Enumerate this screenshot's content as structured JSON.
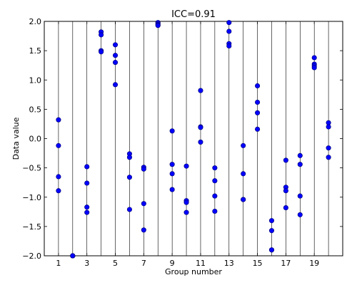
{
  "chart_data": {
    "type": "scatter",
    "title": "ICC=0.91",
    "xlabel": "Group number",
    "ylabel": "Data value",
    "xlim": [
      0,
      21
    ],
    "ylim": [
      -2.0,
      2.0
    ],
    "x_ticks": [
      "1",
      "3",
      "5",
      "7",
      "9",
      "11",
      "13",
      "15",
      "17",
      "19"
    ],
    "y_ticks": [
      "−2.0",
      "−1.5",
      "−1.0",
      "−0.5",
      "0.0",
      "0.5",
      "1.0",
      "1.5",
      "2.0"
    ],
    "group_lines": true,
    "grid": false,
    "point_color": "#0000ff",
    "line_color": "#000000",
    "series": [
      {
        "points": [
          [
            1,
            0.32
          ],
          [
            1,
            -0.12
          ],
          [
            1,
            -0.65
          ],
          [
            1,
            -0.89
          ],
          [
            2,
            -2.0
          ],
          [
            2,
            -2.0
          ],
          [
            2,
            -2.0
          ],
          [
            2,
            -2.0
          ],
          [
            3,
            -0.48
          ],
          [
            3,
            -0.76
          ],
          [
            3,
            -1.17
          ],
          [
            3,
            -1.26
          ],
          [
            4,
            1.82
          ],
          [
            4,
            1.77
          ],
          [
            4,
            1.5
          ],
          [
            4,
            1.48
          ],
          [
            5,
            1.6
          ],
          [
            5,
            1.42
          ],
          [
            5,
            1.3
          ],
          [
            5,
            0.92
          ],
          [
            6,
            -0.26
          ],
          [
            6,
            -0.32
          ],
          [
            6,
            -0.66
          ],
          [
            6,
            -1.21
          ],
          [
            7,
            -0.49
          ],
          [
            7,
            -0.52
          ],
          [
            7,
            -1.11
          ],
          [
            7,
            -1.56
          ],
          [
            8,
            1.98
          ],
          [
            8,
            1.96
          ],
          [
            8,
            1.94
          ],
          [
            8,
            1.93
          ],
          [
            9,
            0.13
          ],
          [
            9,
            -0.44
          ],
          [
            9,
            -0.6
          ],
          [
            9,
            -0.87
          ],
          [
            10,
            -0.47
          ],
          [
            10,
            -1.06
          ],
          [
            10,
            -1.09
          ],
          [
            10,
            -1.26
          ],
          [
            11,
            0.82
          ],
          [
            11,
            0.2
          ],
          [
            11,
            0.19
          ],
          [
            11,
            -0.06
          ],
          [
            12,
            -0.5
          ],
          [
            12,
            -0.72
          ],
          [
            12,
            -0.98
          ],
          [
            12,
            -1.24
          ],
          [
            13,
            1.98
          ],
          [
            13,
            1.83
          ],
          [
            13,
            1.62
          ],
          [
            13,
            1.58
          ],
          [
            14,
            -0.12
          ],
          [
            14,
            -0.6
          ],
          [
            14,
            -1.04
          ],
          [
            14,
            -1.04
          ],
          [
            15,
            0.9
          ],
          [
            15,
            0.62
          ],
          [
            15,
            0.44
          ],
          [
            15,
            0.16
          ],
          [
            16,
            -1.4
          ],
          [
            16,
            -1.57
          ],
          [
            16,
            -1.9
          ],
          [
            16,
            -1.9
          ],
          [
            17,
            -0.37
          ],
          [
            17,
            -0.83
          ],
          [
            17,
            -0.89
          ],
          [
            17,
            -1.18
          ],
          [
            18,
            -0.29
          ],
          [
            18,
            -0.44
          ],
          [
            18,
            -0.98
          ],
          [
            18,
            -1.3
          ],
          [
            19,
            1.38
          ],
          [
            19,
            1.27
          ],
          [
            19,
            1.24
          ],
          [
            19,
            1.21
          ],
          [
            20,
            0.27
          ],
          [
            20,
            0.2
          ],
          [
            20,
            -0.16
          ],
          [
            20,
            -0.32
          ]
        ]
      }
    ]
  }
}
